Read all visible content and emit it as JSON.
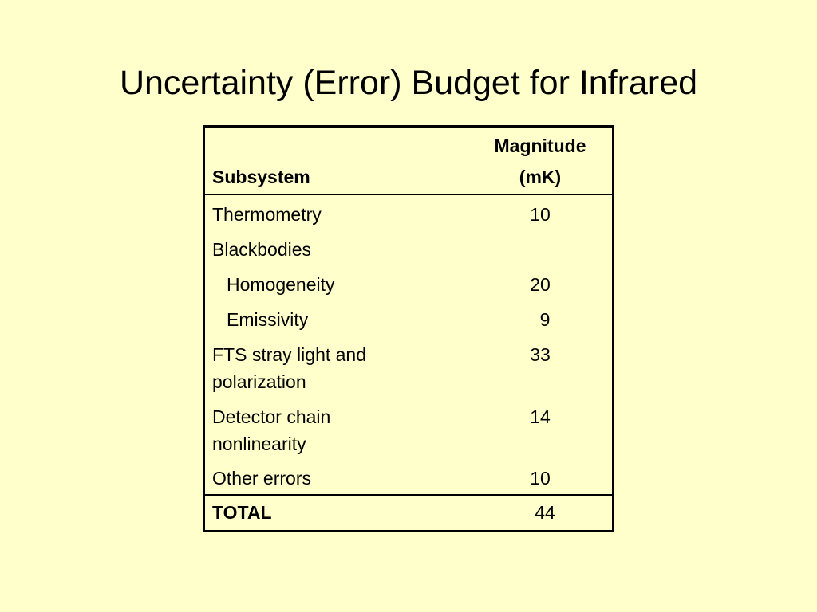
{
  "title": "Uncertainty (Error) Budget for Infrared",
  "table": {
    "header": {
      "subsystem": "Subsystem",
      "magnitude_line1": "Magnitude",
      "magnitude_line2": "(mK)"
    },
    "rows": [
      {
        "subsystem": "Thermometry",
        "magnitude": "10"
      },
      {
        "subsystem": "Blackbodies",
        "magnitude": ""
      },
      {
        "subsystem": "Homogeneity",
        "magnitude": "20"
      },
      {
        "subsystem": "Emissivity",
        "magnitude": "9"
      },
      {
        "subsystem_line1": "FTS stray light and",
        "subsystem_line2": "polarization",
        "magnitude": "33"
      },
      {
        "subsystem_line1": "Detector chain",
        "subsystem_line2": "nonlinearity",
        "magnitude": "14"
      },
      {
        "subsystem": "Other errors",
        "magnitude": "10"
      }
    ],
    "total": {
      "label": "TOTAL",
      "value": "44"
    }
  }
}
